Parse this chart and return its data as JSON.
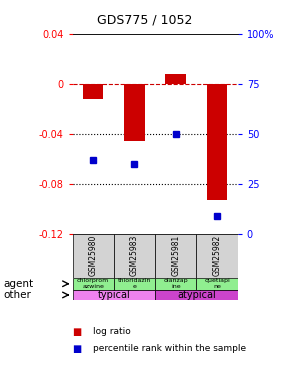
{
  "title": "GDS775 / 1052",
  "samples": [
    "GSM25980",
    "GSM25983",
    "GSM25981",
    "GSM25982"
  ],
  "log_ratios": [
    -0.012,
    -0.046,
    0.008,
    -0.093
  ],
  "percentile_ranks": [
    0.37,
    0.35,
    0.5,
    0.09
  ],
  "ylim_left": [
    -0.12,
    0.04
  ],
  "ylim_right": [
    0,
    100
  ],
  "yticks_left": [
    0.04,
    0,
    -0.04,
    -0.08,
    -0.12
  ],
  "yticks_right": [
    100,
    75,
    50,
    25,
    0
  ],
  "ytick_right_labels": [
    "100%",
    "75",
    "50",
    "25",
    "0"
  ],
  "bar_color": "#cc0000",
  "dot_color": "#0000cc",
  "agent_texts": [
    "chlorprom\nazwine",
    "thioridazin\ne",
    "olanzap\nine",
    "quetiapi\nne"
  ],
  "agent_color": "#90ee90",
  "other_info": [
    {
      "label": "typical",
      "start": 0,
      "end": 2,
      "color": "#ee82ee"
    },
    {
      "label": "atypical",
      "start": 2,
      "end": 4,
      "color": "#cc44cc"
    }
  ],
  "sample_bg": "#d3d3d3",
  "background_color": "#ffffff"
}
